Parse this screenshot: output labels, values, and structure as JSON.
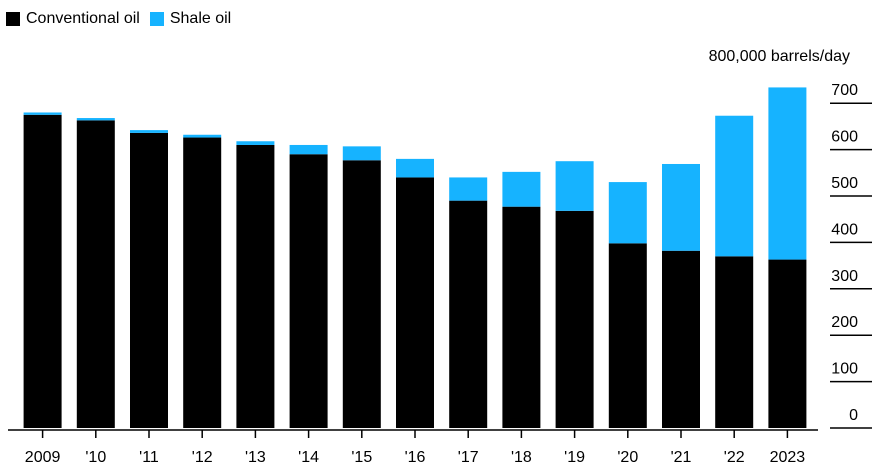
{
  "legend": {
    "items": [
      {
        "label": "Conventional oil",
        "color": "#000000"
      },
      {
        "label": "Shale oil",
        "color": "#16b3ff"
      }
    ]
  },
  "unit_label": "800,000 barrels/day",
  "chart_data": {
    "type": "bar",
    "stacked": true,
    "categories": [
      "2009",
      "'10",
      "'11",
      "'12",
      "'13",
      "'14",
      "'15",
      "'16",
      "'17",
      "'18",
      "'19",
      "'20",
      "'21",
      "'22",
      "2023"
    ],
    "series": [
      {
        "name": "Conventional oil",
        "color": "#000000",
        "values": [
          675,
          663,
          636,
          626,
          610,
          590,
          577,
          540,
          490,
          477,
          468,
          398,
          382,
          370,
          363
        ]
      },
      {
        "name": "Shale oil",
        "color": "#16b3ff",
        "values": [
          5,
          5,
          6,
          6,
          8,
          20,
          30,
          40,
          50,
          75,
          107,
          132,
          187,
          303,
          371
        ]
      }
    ],
    "y_ticks": [
      0,
      100,
      200,
      300,
      400,
      500,
      600,
      700
    ],
    "ylim": [
      0,
      750
    ],
    "grid": false
  }
}
